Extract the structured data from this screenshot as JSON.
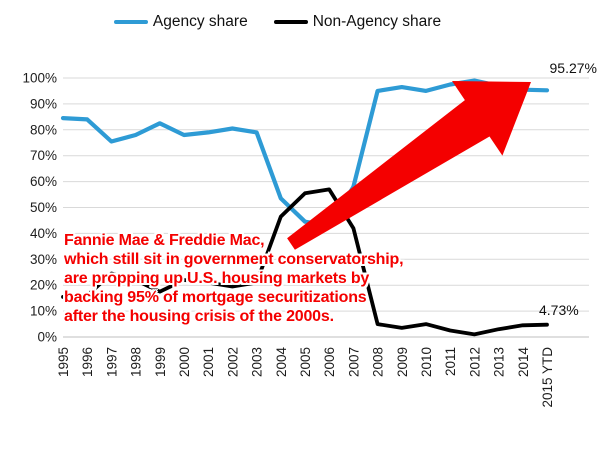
{
  "legend": {
    "position": "top"
  },
  "chart_data": {
    "type": "line",
    "categories": [
      "1995",
      "1996",
      "1997",
      "1998",
      "1999",
      "2000",
      "2001",
      "2002",
      "2003",
      "2004",
      "2005",
      "2006",
      "2007",
      "2008",
      "2009",
      "2010",
      "2011",
      "2012",
      "2013",
      "2014",
      "2015 YTD"
    ],
    "series": [
      {
        "name": "Agency share",
        "color": "#2E9BD5",
        "values": [
          84.5,
          84,
          75.5,
          78,
          82.5,
          78,
          79,
          80.5,
          79,
          53.5,
          44.5,
          43,
          58,
          95,
          96.5,
          95,
          97.5,
          99,
          97,
          95.5,
          95.27
        ]
      },
      {
        "name": "Non-Agency share",
        "color": "#000000",
        "values": [
          15.5,
          16,
          24.5,
          22,
          17.5,
          22,
          21,
          19.5,
          21,
          46.5,
          55.5,
          57,
          42,
          5,
          3.5,
          5,
          2.5,
          1,
          3,
          4.5,
          4.73
        ]
      }
    ],
    "title": "",
    "xlabel": "",
    "ylabel": "",
    "ylim": [
      0,
      100
    ],
    "yticks": [
      "0%",
      "10%",
      "20%",
      "30%",
      "40%",
      "50%",
      "60%",
      "70%",
      "80%",
      "90%",
      "100%"
    ],
    "grid": true,
    "legend_position": "top",
    "end_labels": {
      "agency_final": "95.27%",
      "non_agency_final": "4.73%"
    },
    "annotation_color": "#F40000",
    "annotation_text": [
      "Fannie Mae & Freddie Mac,",
      "which still sit in government conservatorship,",
      "are propping up U.S. housing markets by",
      "backing 95% of mortgage securitizations",
      "after the housing crisis of the 2000s."
    ]
  }
}
